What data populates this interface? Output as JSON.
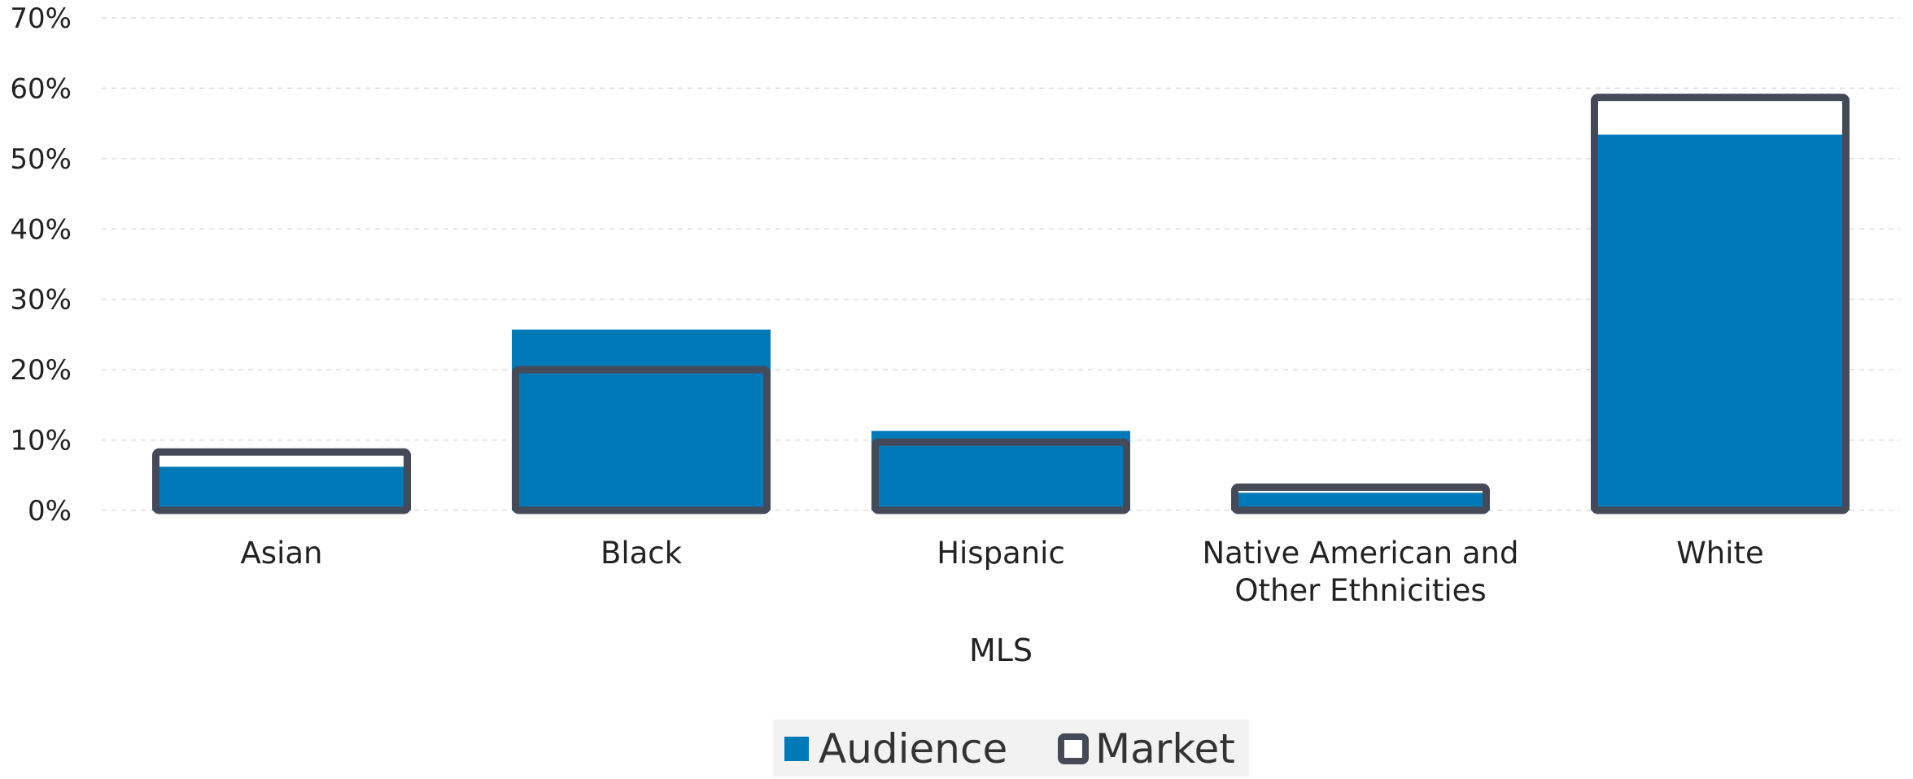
{
  "chart_data": {
    "type": "bar",
    "xlabel": "MLS",
    "ylabel": "",
    "ylim": [
      0,
      70
    ],
    "y_ticks": [
      "0%",
      "10%",
      "20%",
      "30%",
      "40%",
      "50%",
      "60%",
      "70%"
    ],
    "y_tick_values": [
      0,
      10,
      20,
      30,
      40,
      50,
      60,
      70
    ],
    "categories": [
      [
        "Asian"
      ],
      [
        "Black"
      ],
      [
        "Hispanic"
      ],
      [
        "Native American and",
        "Other Ethnicities"
      ],
      [
        "White"
      ]
    ],
    "series": [
      {
        "name": "Audience",
        "values": [
          6.2,
          25.7,
          11.3,
          2.5,
          53.4
        ],
        "style": "filled",
        "color": "#0079b8"
      },
      {
        "name": "Market",
        "values": [
          8.3,
          20.0,
          9.7,
          3.3,
          58.7
        ],
        "style": "outline",
        "color": "#454a59"
      }
    ],
    "grid": true,
    "legend_position": "bottom",
    "legend": [
      "Audience",
      "Market"
    ]
  }
}
